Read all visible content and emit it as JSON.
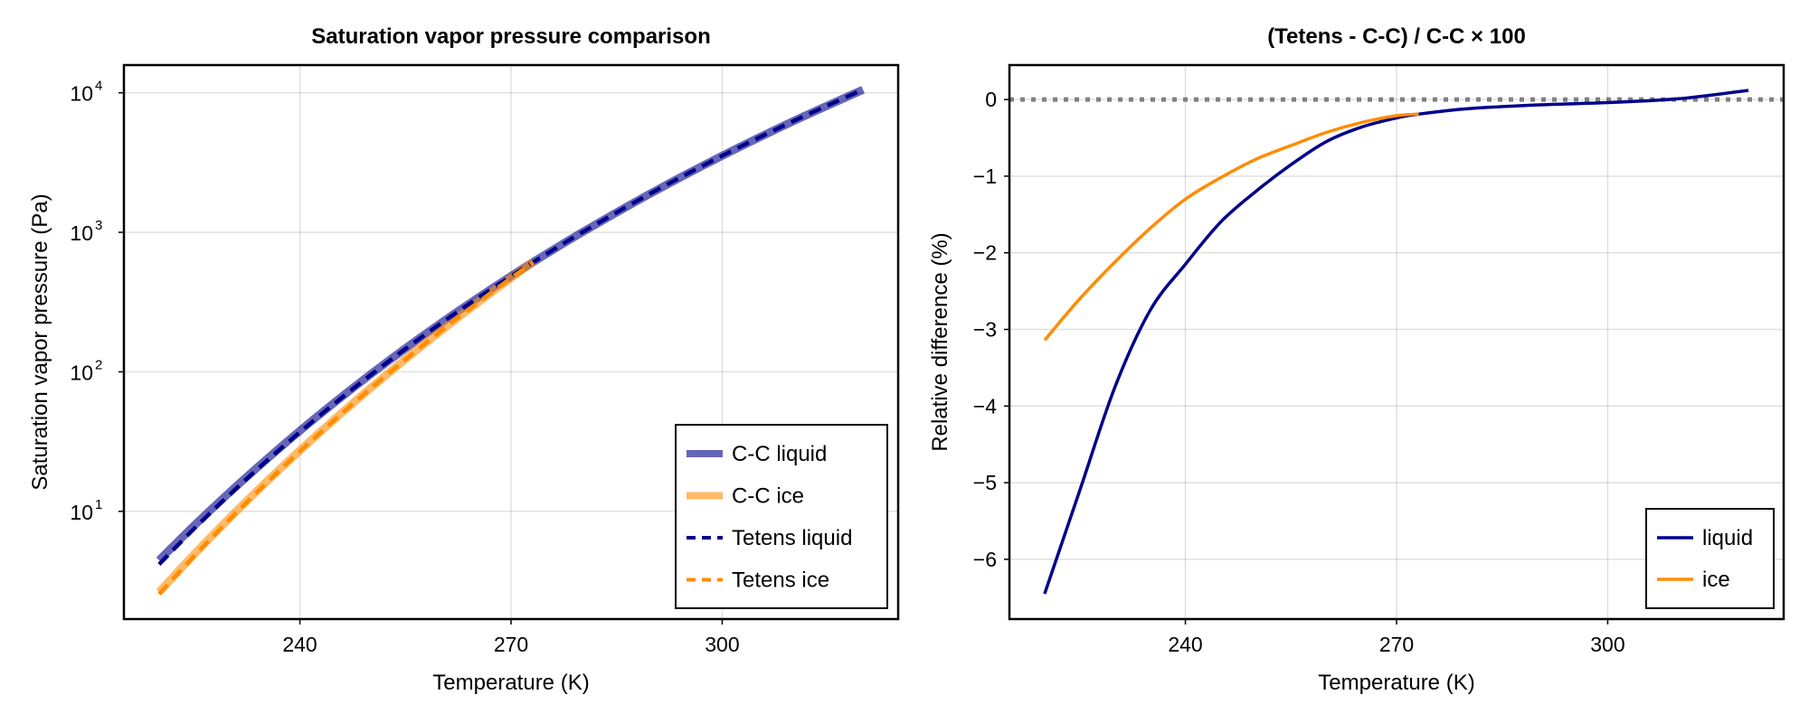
{
  "chart_data": [
    {
      "type": "line",
      "title": "Saturation vapor pressure comparison",
      "xlabel": "Temperature (K)",
      "ylabel": "Saturation vapor pressure (Pa)",
      "xlim": [
        215,
        325
      ],
      "ylim": [
        1.69,
        15800
      ],
      "yscale": "log",
      "xticks": [
        240,
        270,
        300
      ],
      "xtick_labels": [
        "240",
        "270",
        "300"
      ],
      "yticks": [
        10,
        100,
        1000,
        10000
      ],
      "ytick_labels": [
        {
          "base": "10",
          "exp": "1"
        },
        {
          "base": "10",
          "exp": "2"
        },
        {
          "base": "10",
          "exp": "3"
        },
        {
          "base": "10",
          "exp": "4"
        }
      ],
      "grid": true,
      "legend_position": "bottom-right",
      "series": [
        {
          "name": "C-C liquid",
          "color": "#00008b",
          "opacity": 0.6,
          "style": "solid",
          "x": [
            220,
            225,
            230,
            235,
            240,
            245,
            250,
            255,
            260,
            265,
            270,
            273.15,
            280,
            290,
            300,
            310,
            320
          ],
          "y": [
            4.46,
            7.93,
            13.66,
            22.96,
            37.79,
            60.7,
            95.55,
            147.35,
            222.9,
            331.6,
            485.4,
            612.0,
            992.8,
            1920.9,
            3535.4,
            6223.4,
            10520
          ]
        },
        {
          "name": "C-C ice",
          "color": "#ff8c00",
          "opacity": 0.6,
          "style": "solid",
          "x": [
            220,
            225,
            230,
            235,
            240,
            245,
            250,
            255,
            260,
            265,
            270,
            273.15
          ],
          "y": [
            2.64,
            4.93,
            8.94,
            15.82,
            27.29,
            46.08,
            76.16,
            123.4,
            196.1,
            306.4,
            470.7,
            612.0
          ]
        },
        {
          "name": "Tetens liquid",
          "color": "#00008b",
          "opacity": 1,
          "style": "dashed",
          "x": [
            220,
            225,
            230,
            235,
            240,
            245,
            250,
            255,
            260,
            265,
            270,
            273.15,
            280,
            290,
            300,
            310,
            320
          ],
          "y": [
            4.17,
            7.53,
            13.15,
            22.33,
            36.98,
            59.73,
            94.4,
            146.1,
            221.7,
            330.4,
            484.2,
            610.8,
            991.6,
            1919.6,
            3534,
            6224,
            10533
          ]
        },
        {
          "name": "Tetens ice",
          "color": "#ff8c00",
          "opacity": 1,
          "style": "dashed",
          "x": [
            220,
            225,
            230,
            235,
            240,
            245,
            250,
            255,
            260,
            265,
            270,
            273.15
          ],
          "y": [
            2.557,
            4.8,
            8.75,
            15.55,
            26.94,
            45.61,
            75.57,
            122.7,
            195.3,
            305.5,
            469.7,
            610.8
          ]
        }
      ]
    },
    {
      "type": "line",
      "title": "(Tetens - C-C) / C-C × 100",
      "xlabel": "Temperature (K)",
      "ylabel": "Relative difference (%)",
      "xlim": [
        215,
        325
      ],
      "ylim": [
        -6.78,
        0.45
      ],
      "xticks": [
        240,
        270,
        300
      ],
      "xtick_labels": [
        "240",
        "270",
        "300"
      ],
      "yticks": [
        0,
        -1,
        -2,
        -3,
        -4,
        -5,
        -6
      ],
      "ytick_labels": [
        "0",
        "−1",
        "−2",
        "−3",
        "−4",
        "−5",
        "−6"
      ],
      "grid": true,
      "reference_line": {
        "y": 0,
        "color": "#808080",
        "style": "dotted"
      },
      "legend_position": "bottom-right",
      "series": [
        {
          "name": "liquid",
          "color": "#00008b",
          "x": [
            220,
            225,
            230,
            235,
            240,
            245,
            250,
            255,
            260,
            265,
            270,
            273.15,
            280,
            290,
            300,
            310,
            320
          ],
          "y": [
            -6.45,
            -5.1,
            -3.75,
            -2.75,
            -2.15,
            -1.6,
            -1.2,
            -0.85,
            -0.55,
            -0.36,
            -0.24,
            -0.19,
            -0.12,
            -0.07,
            -0.04,
            0.01,
            0.12
          ]
        },
        {
          "name": "ice",
          "color": "#ff8c00",
          "x": [
            220,
            225,
            230,
            235,
            240,
            245,
            250,
            255,
            260,
            265,
            270,
            273.15
          ],
          "y": [
            -3.14,
            -2.6,
            -2.12,
            -1.68,
            -1.3,
            -1.02,
            -0.78,
            -0.6,
            -0.43,
            -0.3,
            -0.21,
            -0.19
          ]
        }
      ]
    }
  ]
}
